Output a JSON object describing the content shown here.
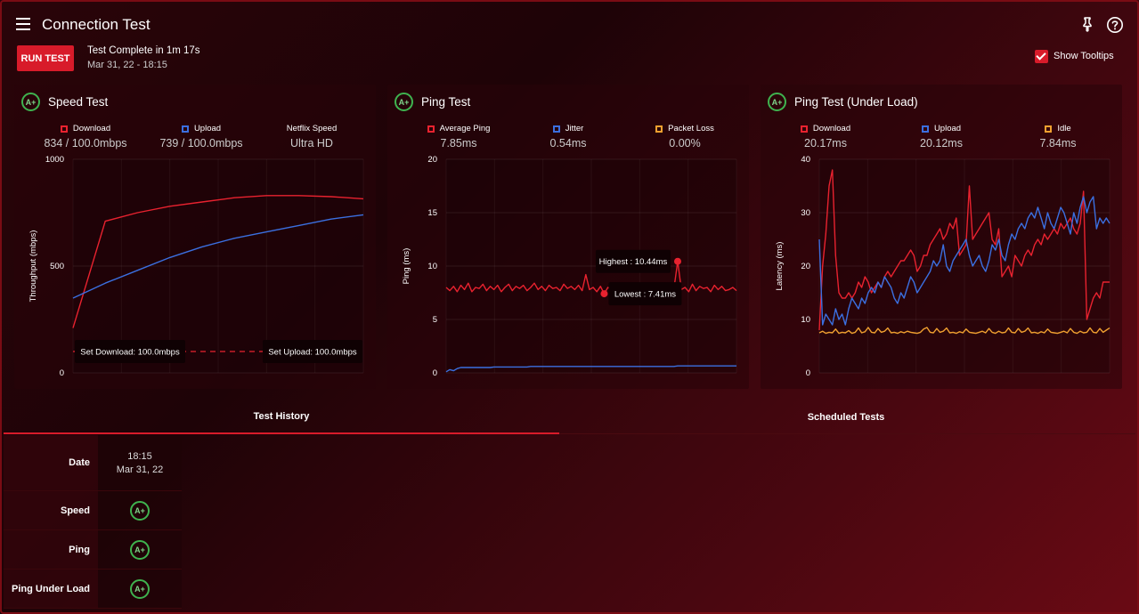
{
  "app": {
    "title": "Connection Test"
  },
  "toolbar": {
    "run_label": "RUN TEST",
    "status": "Test Complete in 1m 17s",
    "date": "Mar 31, 22 - 18:15",
    "show_tooltips": "Show Tooltips"
  },
  "icons": {
    "menu": "menu-icon",
    "pin": "pin-icon",
    "help": "help-icon"
  },
  "colors": {
    "accent": "#d81b2a",
    "download": "#e8222f",
    "upload": "#3b6fe0",
    "packet_loss": "#f0a030",
    "grade": "#3fb34f"
  },
  "panels": [
    {
      "title": "Speed Test",
      "grade": "A+",
      "stats": [
        {
          "label": "Download",
          "value": "834 / 100.0mbps",
          "color": "#e8222f"
        },
        {
          "label": "Upload",
          "value": "739 / 100.0mbps",
          "color": "#3b6fe0"
        },
        {
          "label": "Netflix Speed",
          "value": "Ultra HD",
          "color": ""
        }
      ]
    },
    {
      "title": "Ping Test",
      "grade": "A+",
      "stats": [
        {
          "label": "Average Ping",
          "value": "7.85ms",
          "color": "#e8222f"
        },
        {
          "label": "Jitter",
          "value": "0.54ms",
          "color": "#3b6fe0"
        },
        {
          "label": "Packet Loss",
          "value": "0.00%",
          "color": "#f0a030"
        }
      ]
    },
    {
      "title": "Ping Test (Under Load)",
      "grade": "A+",
      "stats": [
        {
          "label": "Download",
          "value": "20.17ms",
          "color": "#e8222f"
        },
        {
          "label": "Upload",
          "value": "20.12ms",
          "color": "#3b6fe0"
        },
        {
          "label": "Idle",
          "value": "7.84ms",
          "color": "#f0a030"
        }
      ]
    }
  ],
  "chart_data": [
    {
      "type": "line",
      "ylabel": "Throughput (mbps)",
      "ylim": [
        0,
        1000
      ],
      "yticks": [
        0,
        500,
        1000
      ],
      "grid": true,
      "x": [
        0,
        1,
        2,
        3,
        4,
        5,
        6,
        7,
        8,
        9
      ],
      "series": [
        {
          "name": "Download",
          "color": "#e8222f",
          "values": [
            210,
            710,
            750,
            780,
            800,
            820,
            830,
            830,
            825,
            815
          ]
        },
        {
          "name": "Upload",
          "color": "#3b6fe0",
          "values": [
            350,
            420,
            480,
            540,
            590,
            630,
            660,
            690,
            720,
            740
          ]
        }
      ],
      "annotations": [
        {
          "text": "Set Download: 100.0mbps",
          "y": 100
        },
        {
          "text": "Set Upload: 100.0mbps",
          "y": 100
        }
      ]
    },
    {
      "type": "line",
      "ylabel": "Ping (ms)",
      "ylim": [
        0,
        20
      ],
      "yticks": [
        0,
        5,
        10,
        15,
        20
      ],
      "grid": true,
      "series": [
        {
          "name": "Average Ping",
          "color": "#e8222f",
          "values": [
            8.0,
            7.7,
            8.1,
            7.6,
            8.2,
            7.8,
            8.4,
            7.6,
            8.0,
            7.9,
            8.3,
            7.7,
            8.1,
            7.8,
            8.2,
            7.6,
            8.0,
            8.3,
            7.7,
            8.1,
            7.9,
            8.2,
            7.7,
            8.0,
            8.4,
            7.8,
            8.1,
            7.7,
            8.2,
            7.9,
            8.0,
            7.7,
            8.3,
            7.9,
            8.1,
            7.8,
            8.2,
            7.7,
            9.2,
            7.8,
            8.0,
            7.6,
            8.1,
            7.41,
            8.0,
            7.8,
            8.2,
            7.9,
            7.7,
            8.1,
            7.9,
            8.0,
            7.6,
            8.2,
            7.9,
            8.3,
            7.8,
            8.1,
            7.7,
            8.0,
            7.6,
            8.1,
            7.9,
            10.44,
            7.8,
            8.0,
            7.6,
            8.3,
            7.7,
            8.1,
            7.9,
            8.0,
            7.6,
            8.2,
            7.8,
            8.1,
            7.7,
            7.8,
            8.0,
            7.7
          ]
        },
        {
          "name": "Jitter",
          "color": "#3b6fe0",
          "values": [
            0.1,
            0.3,
            0.2,
            0.4,
            0.5,
            0.5,
            0.5,
            0.5,
            0.5,
            0.5,
            0.5,
            0.5,
            0.5,
            0.55,
            0.55,
            0.55,
            0.55,
            0.55,
            0.55,
            0.55,
            0.55,
            0.55,
            0.55,
            0.6,
            0.6,
            0.6,
            0.6,
            0.6,
            0.6,
            0.6,
            0.6,
            0.6,
            0.6,
            0.6,
            0.6,
            0.6,
            0.6,
            0.6,
            0.6,
            0.6,
            0.6,
            0.6,
            0.6,
            0.6,
            0.6,
            0.6,
            0.6,
            0.6,
            0.6,
            0.6,
            0.6,
            0.6,
            0.6,
            0.6,
            0.6,
            0.6,
            0.6,
            0.6,
            0.6,
            0.6,
            0.6,
            0.6,
            0.6,
            0.65,
            0.65,
            0.65,
            0.65,
            0.65,
            0.65,
            0.65,
            0.65,
            0.65,
            0.65,
            0.65,
            0.65,
            0.65,
            0.65,
            0.65,
            0.65,
            0.65
          ]
        }
      ],
      "annotations": [
        {
          "text": "Highest : 10.44ms",
          "index": 63,
          "value": 10.44
        },
        {
          "text": "Lowest : 7.41ms",
          "index": 43,
          "value": 7.41
        }
      ]
    },
    {
      "type": "line",
      "ylabel": "Latency (ms)",
      "ylim": [
        0,
        40
      ],
      "yticks": [
        0,
        10,
        20,
        30,
        40
      ],
      "grid": true,
      "series": [
        {
          "name": "Download",
          "color": "#e8222f",
          "values": [
            8,
            20,
            26,
            35,
            38,
            22,
            15,
            14,
            14,
            15,
            14,
            15,
            17,
            16,
            18,
            17,
            15,
            16,
            17,
            16,
            18,
            19,
            18,
            19,
            20,
            21,
            21,
            22,
            23,
            22,
            19,
            20,
            22,
            22,
            24,
            25,
            26,
            27,
            25,
            26,
            28,
            27,
            29,
            22,
            23,
            24,
            35,
            25,
            26,
            27,
            28,
            29,
            30,
            25,
            24,
            27,
            18,
            19,
            20,
            18,
            22,
            21,
            20,
            22,
            23,
            22,
            24,
            25,
            24,
            26,
            25,
            26,
            27,
            26,
            28,
            27,
            28,
            29,
            27,
            26,
            28,
            34,
            10,
            12,
            14,
            15,
            14,
            17,
            17,
            17
          ]
        },
        {
          "name": "Upload",
          "color": "#3b6fe0",
          "values": [
            25,
            9,
            11,
            10,
            9,
            12,
            10,
            11,
            9,
            12,
            14,
            13,
            12,
            14,
            13,
            15,
            16,
            15,
            17,
            16,
            18,
            17,
            16,
            14,
            13,
            15,
            14,
            16,
            18,
            17,
            15,
            16,
            17,
            18,
            19,
            21,
            20,
            21,
            24,
            20,
            19,
            21,
            22,
            23,
            24,
            25,
            22,
            20,
            21,
            22,
            20,
            19,
            21,
            24,
            23,
            25,
            22,
            21,
            24,
            26,
            25,
            27,
            28,
            27,
            29,
            30,
            29,
            31,
            29,
            27,
            30,
            28,
            27,
            29,
            31,
            30,
            28,
            26,
            30,
            28,
            31,
            33,
            30,
            32,
            33,
            27,
            29,
            28,
            29,
            28
          ]
        },
        {
          "name": "Idle",
          "color": "#f0a030",
          "values": [
            7.5,
            7.8,
            7.4,
            7.6,
            7.5,
            8.2,
            7.4,
            7.6,
            7.5,
            7.9,
            7.4,
            7.6,
            8.4,
            7.5,
            7.7,
            8.5,
            7.6,
            7.5,
            8.3,
            7.6,
            7.8,
            8.4,
            7.5,
            7.6,
            7.4,
            7.7,
            7.5,
            7.8,
            7.6,
            7.5,
            7.4,
            7.6,
            8.2,
            8.5,
            7.6,
            7.5,
            8.3,
            7.6,
            7.8,
            8.4,
            7.5,
            7.6,
            7.4,
            7.7,
            7.5,
            8.2,
            7.6,
            7.5,
            7.4,
            7.6,
            7.8,
            7.5,
            8.3,
            7.6,
            7.4,
            7.8,
            7.5,
            7.6,
            8.4,
            7.6,
            7.5,
            8.3,
            7.6,
            7.8,
            8.4,
            7.5,
            7.6,
            7.4,
            7.7,
            7.5,
            8.2,
            7.6,
            7.5,
            7.4,
            7.6,
            7.8,
            7.5,
            8.3,
            7.6,
            7.4,
            7.8,
            7.5,
            7.6,
            8.4,
            7.6,
            7.5,
            8.3,
            7.6,
            8.0,
            8.4
          ]
        }
      ]
    }
  ],
  "tabs": [
    {
      "label": "Test History"
    },
    {
      "label": "Scheduled Tests"
    }
  ],
  "history": {
    "labels": {
      "date": "Date",
      "speed": "Speed",
      "ping": "Ping",
      "ping_load": "Ping Under Load"
    },
    "entry": {
      "time": "18:15",
      "day": "Mar 31, 22",
      "speed": "A+",
      "ping": "A+",
      "ping_load": "A+"
    }
  }
}
